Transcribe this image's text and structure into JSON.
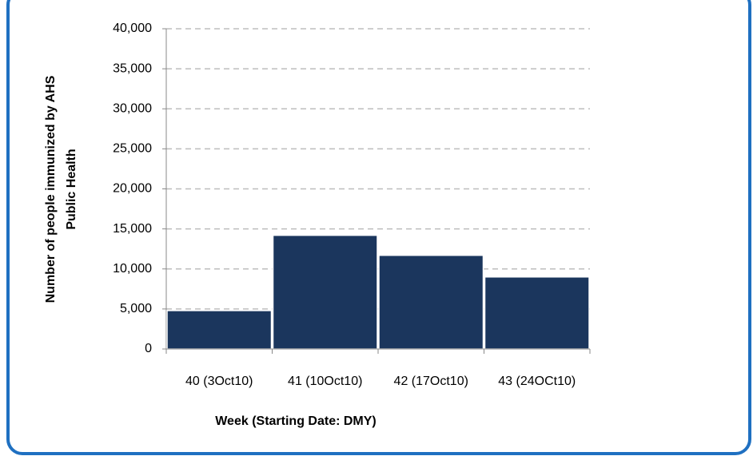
{
  "chart_data": {
    "type": "bar",
    "categories": [
      "40 (3Oct10)",
      "41 (10Oct10)",
      "42 (17Oct10)",
      "43 (24OCt10)"
    ],
    "values": [
      4800,
      14200,
      11700,
      9000
    ],
    "color": "#1b365d",
    "xlabel": "Week (Starting  Date: DMY)",
    "ylabel": [
      "Number of people immunized by AHS",
      "Public Health"
    ],
    "ylim": [
      0,
      40000
    ],
    "yticks": [
      0,
      {
        "value": 5000,
        "label": "5,000"
      },
      {
        "value": 10000,
        "label": "10,000"
      },
      {
        "value": 15000,
        "label": "15,000"
      },
      {
        "value": 20000,
        "label": "20,000"
      },
      {
        "value": 25000,
        "label": "25,000"
      },
      {
        "value": 30000,
        "label": "30,000"
      },
      {
        "value": 35000,
        "label": "35,000"
      },
      {
        "value": 40000,
        "label": "40,000"
      }
    ],
    "grid": true
  }
}
